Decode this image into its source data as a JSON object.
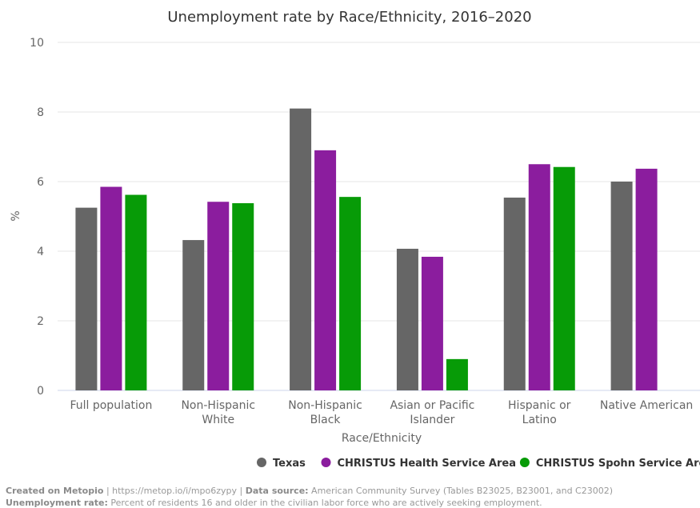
{
  "chart_data": {
    "type": "bar",
    "title": "Unemployment rate by Race/Ethnicity, 2016–2020",
    "xlabel": "Race/Ethnicity",
    "ylabel": "%",
    "ylim": [
      0,
      10
    ],
    "yticks": [
      0,
      2,
      4,
      6,
      8,
      10
    ],
    "grid": true,
    "legend_position": "bottom-right",
    "categories": [
      [
        "Full population"
      ],
      [
        "Non-Hispanic",
        "White"
      ],
      [
        "Non-Hispanic",
        "Black"
      ],
      [
        "Asian or Pacific",
        "Islander"
      ],
      [
        "Hispanic or",
        "Latino"
      ],
      [
        "Native American"
      ]
    ],
    "series": [
      {
        "name": "Texas",
        "color": "#666666",
        "values": [
          5.25,
          4.32,
          8.1,
          4.07,
          5.54,
          6.0
        ]
      },
      {
        "name": "CHRISTUS Health Service Area",
        "color": "#8b1d9e",
        "values": [
          5.85,
          5.42,
          6.9,
          3.84,
          6.5,
          6.37
        ]
      },
      {
        "name": "CHRISTUS Spohn Service Area",
        "color": "#079b07",
        "values": [
          5.62,
          5.38,
          5.56,
          0.9,
          6.42,
          null
        ]
      }
    ]
  },
  "footer": {
    "created_label": "Created on Metopio",
    "url": " | https://metop.io/i/mpo6zypy | ",
    "source_label": "Data source:",
    "source_text": " American Community Survey (Tables B23025, B23001, and C23002)",
    "def_label": "Unemployment rate:",
    "def_text": " Percent of residents 16 and older in the civilian labor force who are actively seeking employment."
  }
}
